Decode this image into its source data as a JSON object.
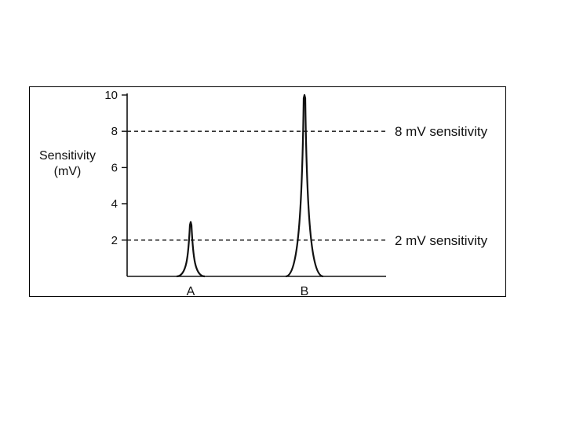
{
  "chart_data": {
    "type": "line",
    "ylabel_lines": [
      "Sensitivity",
      "(mV)"
    ],
    "ylim": [
      0,
      10
    ],
    "yticks": [
      2,
      4,
      6,
      8,
      10
    ],
    "categories": [
      "A",
      "B"
    ],
    "peaks": [
      {
        "category": "A",
        "value": 3
      },
      {
        "category": "B",
        "value": 10
      }
    ],
    "reference_lines": [
      {
        "value": 8,
        "label": "8 mV sensitivity",
        "style": "dashed"
      },
      {
        "value": 2,
        "label": "2 mV sensitivity",
        "style": "dashed"
      }
    ],
    "grid": false,
    "color": "#111111"
  }
}
